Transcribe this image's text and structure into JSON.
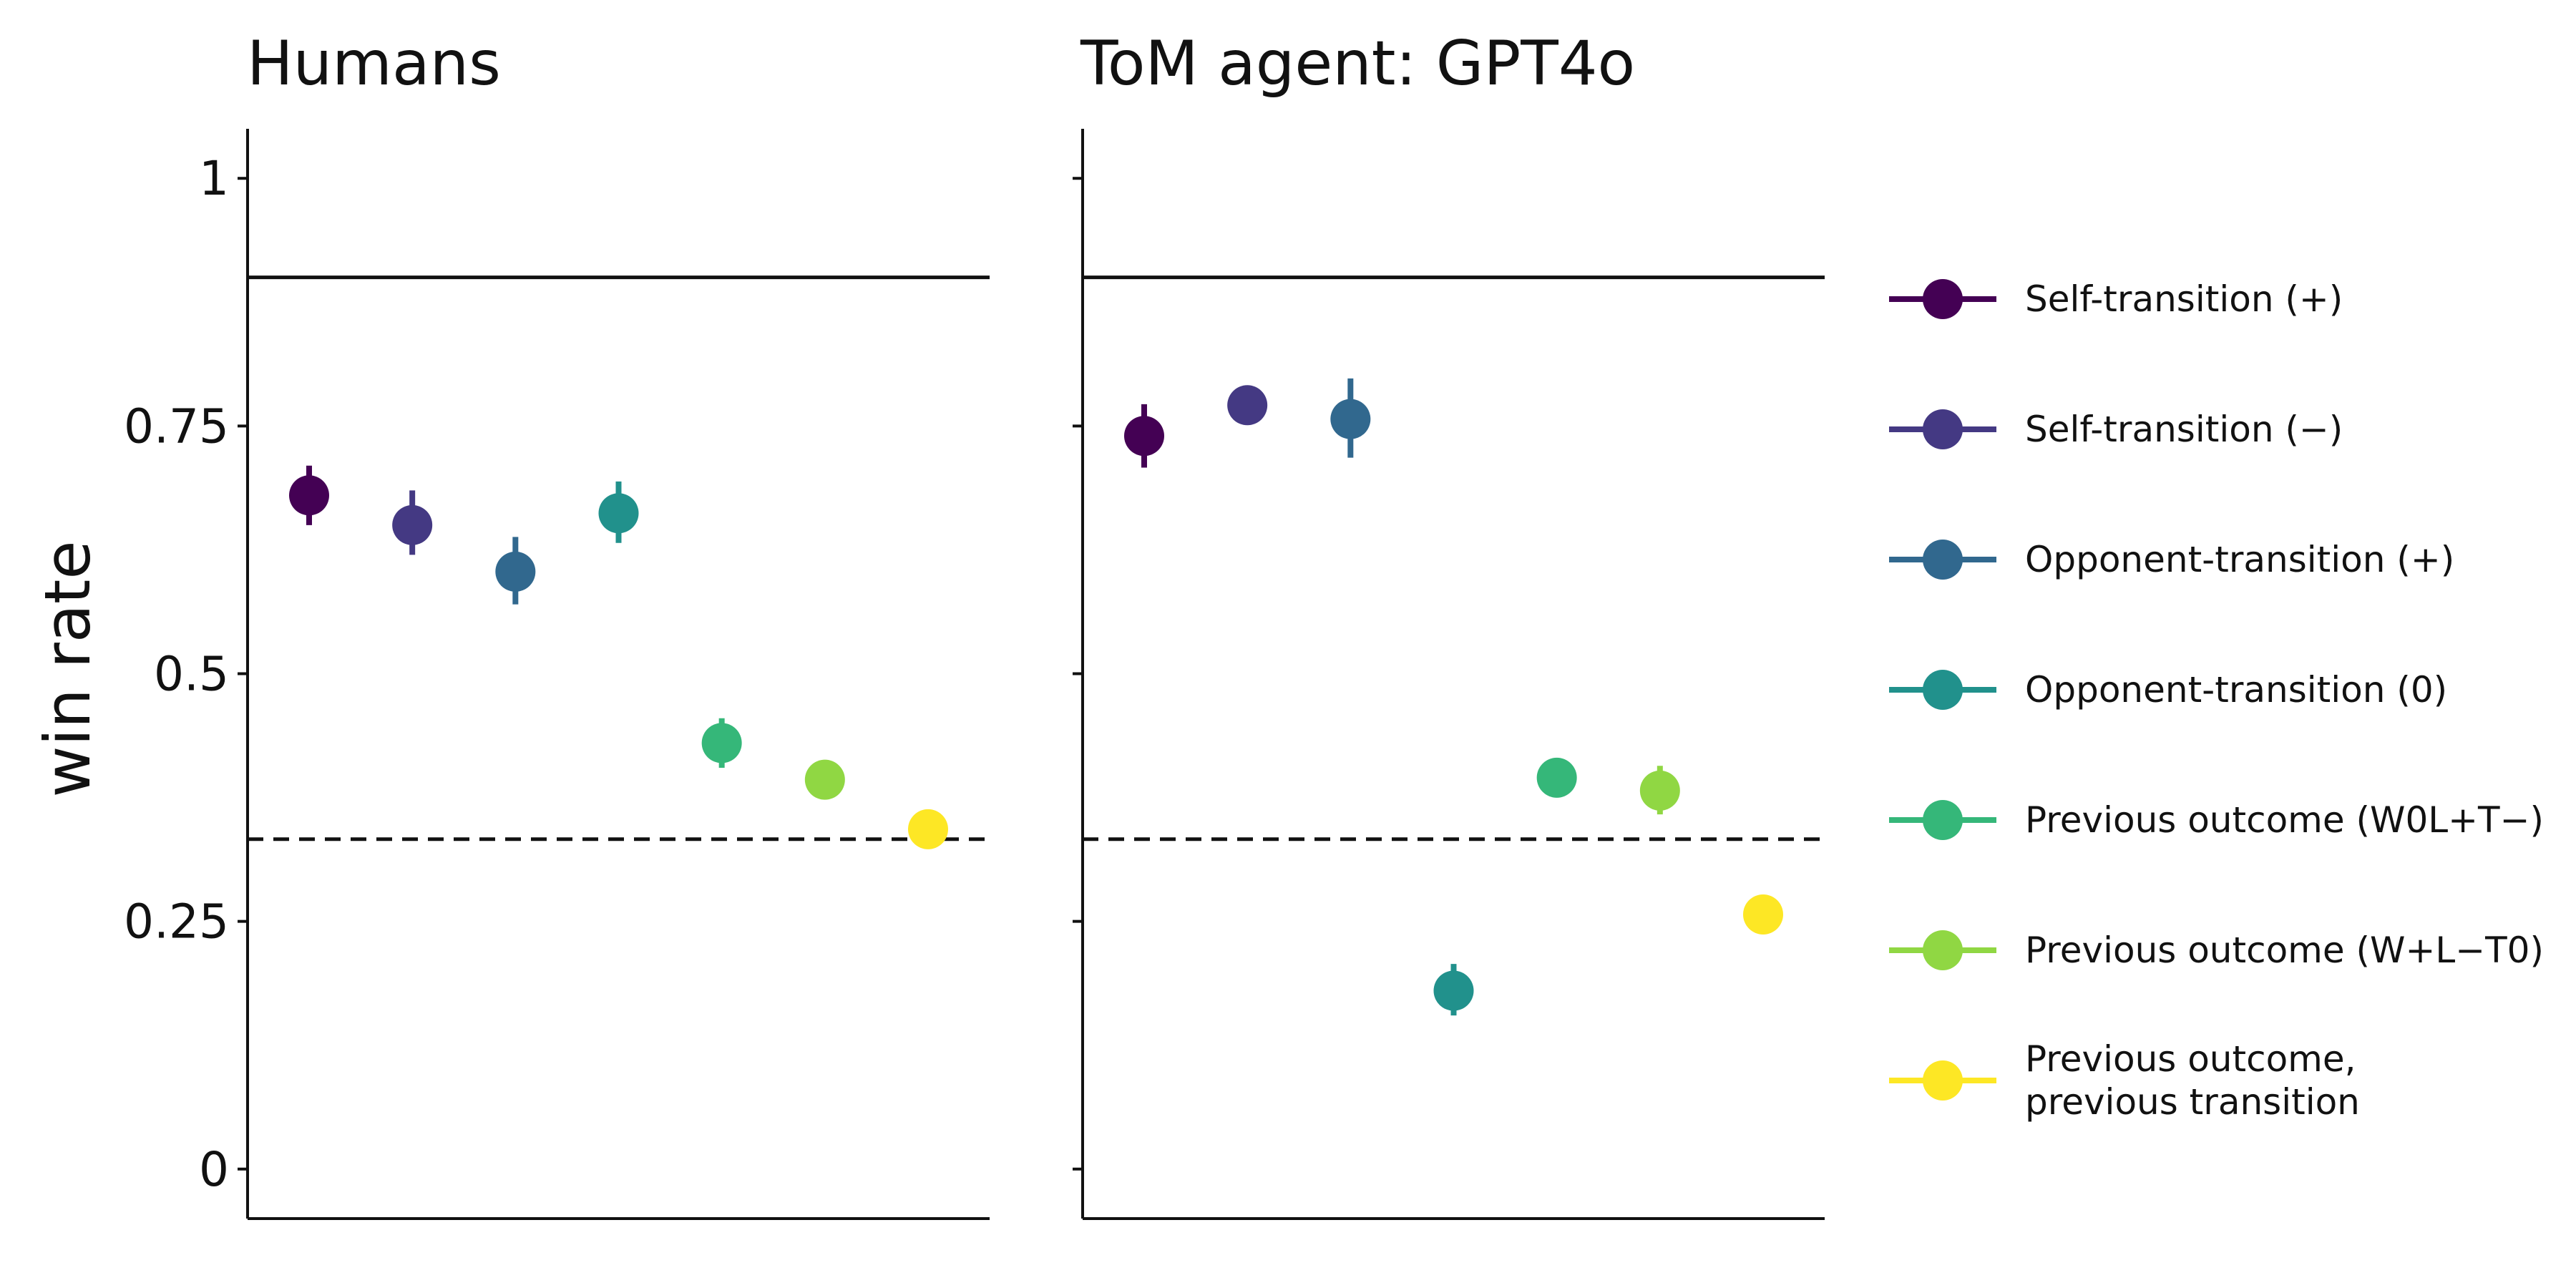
{
  "chart_data": {
    "type": "scatter",
    "ylabel": "win rate",
    "ylim": [
      -0.05,
      1.05
    ],
    "y_ticks": [
      0,
      0.25,
      0.5,
      0.75,
      1
    ],
    "y_tick_labels": [
      "0",
      "0.25",
      "0.5",
      "0.75",
      "1"
    ],
    "reference_lines": [
      {
        "y": 0.9,
        "style": "solid"
      },
      {
        "y": 0.333,
        "style": "dashed"
      }
    ],
    "grid": false,
    "legend_position": "right",
    "series": [
      {
        "name": "Self-transition (+)",
        "color": "#440154"
      },
      {
        "name": "Self-transition (−)",
        "color": "#443983"
      },
      {
        "name": "Opponent-transition (+)",
        "color": "#31688e"
      },
      {
        "name": "Opponent-transition (0)",
        "color": "#21918c"
      },
      {
        "name": "Previous outcome (W0L+T−)",
        "color": "#35b779"
      },
      {
        "name": "Previous outcome (W+L−T0)",
        "color": "#90d743"
      },
      {
        "name": "Previous outcome,\nprevious transition",
        "color": "#fde725"
      }
    ],
    "panels": [
      {
        "title": "Humans",
        "points": [
          {
            "series": 0,
            "y": 0.68,
            "lo": 0.65,
            "hi": 0.71
          },
          {
            "series": 1,
            "y": 0.65,
            "lo": 0.62,
            "hi": 0.685
          },
          {
            "series": 2,
            "y": 0.603,
            "lo": 0.57,
            "hi": 0.638
          },
          {
            "series": 3,
            "y": 0.662,
            "lo": 0.632,
            "hi": 0.694
          },
          {
            "series": 4,
            "y": 0.43,
            "lo": 0.405,
            "hi": 0.455
          },
          {
            "series": 5,
            "y": 0.393,
            "lo": 0.375,
            "hi": 0.408
          },
          {
            "series": 6,
            "y": 0.343,
            "lo": 0.33,
            "hi": 0.356
          }
        ]
      },
      {
        "title": "ToM agent: GPT4o",
        "points": [
          {
            "series": 0,
            "y": 0.74,
            "lo": 0.708,
            "hi": 0.772
          },
          {
            "series": 1,
            "y": 0.771,
            "lo": 0.758,
            "hi": 0.784
          },
          {
            "series": 2,
            "y": 0.757,
            "lo": 0.718,
            "hi": 0.798
          },
          {
            "series": 3,
            "y": 0.18,
            "lo": 0.155,
            "hi": 0.207
          },
          {
            "series": 4,
            "y": 0.395,
            "lo": 0.382,
            "hi": 0.408
          },
          {
            "series": 5,
            "y": 0.382,
            "lo": 0.358,
            "hi": 0.407
          },
          {
            "series": 6,
            "y": 0.257,
            "lo": 0.245,
            "hi": 0.27
          }
        ]
      }
    ]
  }
}
